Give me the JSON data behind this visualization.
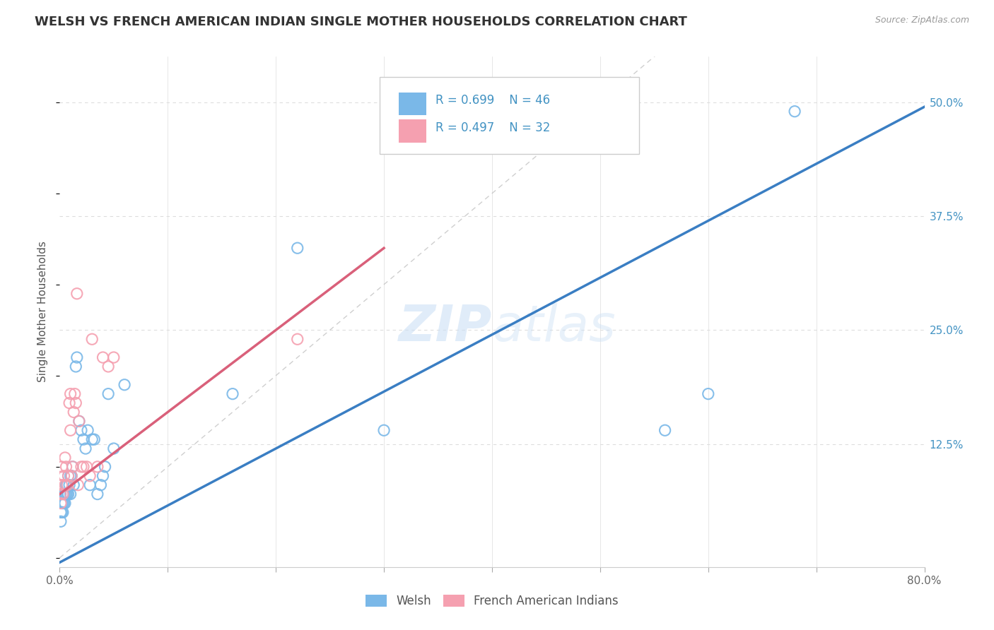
{
  "title": "WELSH VS FRENCH AMERICAN INDIAN SINGLE MOTHER HOUSEHOLDS CORRELATION CHART",
  "source": "Source: ZipAtlas.com",
  "ylabel": "Single Mother Households",
  "xlim": [
    0.0,
    0.8
  ],
  "ylim": [
    -0.01,
    0.55
  ],
  "xticks": [
    0.0,
    0.1,
    0.2,
    0.3,
    0.4,
    0.5,
    0.6,
    0.7,
    0.8
  ],
  "xticklabels": [
    "0.0%",
    "",
    "",
    "",
    "",
    "",
    "",
    "",
    "80.0%"
  ],
  "ytick_positions": [
    0.0,
    0.125,
    0.25,
    0.375,
    0.5
  ],
  "yticklabels": [
    "",
    "12.5%",
    "25.0%",
    "37.5%",
    "50.0%"
  ],
  "welsh_color": "#7ab8e8",
  "french_color": "#f5a0b0",
  "welsh_line_color": "#3a7ec3",
  "french_line_color": "#d9607a",
  "diag_line_color": "#bbbbbb",
  "legend_R_welsh": "R = 0.699",
  "legend_N_welsh": "N = 46",
  "legend_R_french": "R = 0.497",
  "legend_N_french": "N = 32",
  "watermark": "ZIPatlas",
  "welsh_x": [
    0.001,
    0.001,
    0.002,
    0.002,
    0.003,
    0.003,
    0.003,
    0.004,
    0.004,
    0.005,
    0.005,
    0.006,
    0.006,
    0.007,
    0.007,
    0.008,
    0.008,
    0.009,
    0.01,
    0.01,
    0.011,
    0.012,
    0.013,
    0.015,
    0.016,
    0.018,
    0.02,
    0.022,
    0.024,
    0.026,
    0.028,
    0.03,
    0.032,
    0.035,
    0.038,
    0.04,
    0.042,
    0.045,
    0.05,
    0.06,
    0.16,
    0.22,
    0.3,
    0.56,
    0.6,
    0.68
  ],
  "welsh_y": [
    0.04,
    0.05,
    0.05,
    0.06,
    0.05,
    0.06,
    0.07,
    0.06,
    0.07,
    0.06,
    0.07,
    0.07,
    0.08,
    0.07,
    0.08,
    0.07,
    0.09,
    0.08,
    0.09,
    0.07,
    0.09,
    0.1,
    0.08,
    0.21,
    0.22,
    0.15,
    0.14,
    0.13,
    0.12,
    0.14,
    0.08,
    0.13,
    0.13,
    0.07,
    0.08,
    0.09,
    0.1,
    0.18,
    0.12,
    0.19,
    0.18,
    0.34,
    0.14,
    0.14,
    0.18,
    0.49
  ],
  "french_x": [
    0.001,
    0.001,
    0.002,
    0.002,
    0.003,
    0.004,
    0.005,
    0.005,
    0.006,
    0.007,
    0.008,
    0.009,
    0.01,
    0.01,
    0.011,
    0.012,
    0.013,
    0.014,
    0.015,
    0.016,
    0.017,
    0.018,
    0.02,
    0.022,
    0.025,
    0.028,
    0.03,
    0.035,
    0.04,
    0.045,
    0.05,
    0.22
  ],
  "french_y": [
    0.06,
    0.07,
    0.08,
    0.1,
    0.07,
    0.09,
    0.08,
    0.11,
    0.1,
    0.08,
    0.09,
    0.17,
    0.14,
    0.18,
    0.09,
    0.1,
    0.16,
    0.18,
    0.17,
    0.29,
    0.08,
    0.15,
    0.1,
    0.1,
    0.1,
    0.09,
    0.24,
    0.1,
    0.22,
    0.21,
    0.22,
    0.24
  ],
  "welsh_trend_x": [
    0.0,
    0.8
  ],
  "welsh_trend_y": [
    -0.005,
    0.495
  ],
  "french_trend_x": [
    0.0,
    0.3
  ],
  "french_trend_y": [
    0.07,
    0.34
  ],
  "grid_color": "#dddddd",
  "grid_dash": [
    4,
    4
  ],
  "bg_color": "#ffffff",
  "title_color": "#333333",
  "source_color": "#999999",
  "axis_color": "#4393c3",
  "tick_label_color": "#666666"
}
